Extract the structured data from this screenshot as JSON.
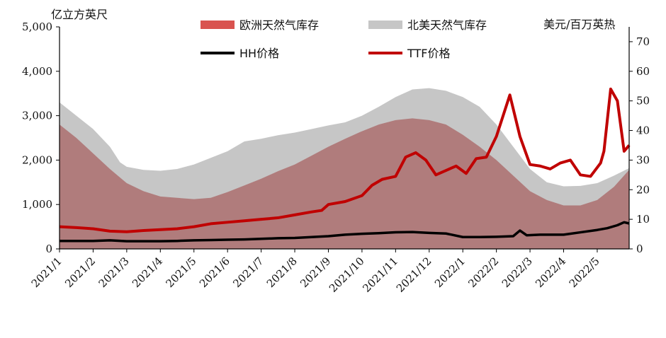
{
  "chart_data": {
    "type": "area",
    "left_axis_unit": "亿立方英尺",
    "right_axis_unit": "美元/百万英热",
    "x_labels": [
      "2021/1",
      "2021/2",
      "2021/3",
      "2021/4",
      "2021/5",
      "2021/6",
      "2021/7",
      "2021/8",
      "2021/9",
      "2021/10",
      "2021/11",
      "2021/12",
      "2022/1",
      "2022/2",
      "2022/3",
      "2022/4",
      "2022/5"
    ],
    "x_range": [
      0,
      16.95
    ],
    "y_left_range": [
      0,
      5000
    ],
    "y_left_ticks": [
      "0",
      "1,000",
      "2,000",
      "3,000",
      "4,000",
      "5,000"
    ],
    "y_right_range": [
      0,
      75
    ],
    "y_right_ticks": [
      "0",
      "10",
      "20",
      "30",
      "40",
      "50",
      "60",
      "70"
    ],
    "legend_position": "top",
    "series": [
      {
        "name": "北美天然气库存",
        "kind": "area",
        "axis": "left",
        "color": "#c6c6c6",
        "points": [
          [
            0,
            3300
          ],
          [
            0.5,
            3000
          ],
          [
            1,
            2700
          ],
          [
            1.5,
            2300
          ],
          [
            1.8,
            1950
          ],
          [
            2,
            1850
          ],
          [
            2.5,
            1780
          ],
          [
            3,
            1760
          ],
          [
            3.5,
            1800
          ],
          [
            4,
            1900
          ],
          [
            4.5,
            2050
          ],
          [
            5,
            2200
          ],
          [
            5.5,
            2420
          ],
          [
            6,
            2480
          ],
          [
            6.5,
            2560
          ],
          [
            7,
            2620
          ],
          [
            7.5,
            2700
          ],
          [
            8,
            2780
          ],
          [
            8.5,
            2850
          ],
          [
            9,
            3000
          ],
          [
            9.5,
            3200
          ],
          [
            10,
            3420
          ],
          [
            10.5,
            3590
          ],
          [
            11,
            3620
          ],
          [
            11.5,
            3560
          ],
          [
            12,
            3420
          ],
          [
            12.5,
            3200
          ],
          [
            13,
            2800
          ],
          [
            13.5,
            2300
          ],
          [
            14,
            1800
          ],
          [
            14.5,
            1500
          ],
          [
            15,
            1410
          ],
          [
            15.5,
            1420
          ],
          [
            16,
            1480
          ],
          [
            16.5,
            1650
          ],
          [
            16.95,
            1820
          ]
        ]
      },
      {
        "name": "欧洲天然气库存",
        "kind": "area",
        "axis": "left",
        "color": "#b07c7c",
        "points": [
          [
            0,
            2800
          ],
          [
            0.5,
            2500
          ],
          [
            1,
            2150
          ],
          [
            1.5,
            1800
          ],
          [
            2,
            1480
          ],
          [
            2.5,
            1300
          ],
          [
            3,
            1180
          ],
          [
            3.5,
            1150
          ],
          [
            4,
            1120
          ],
          [
            4.5,
            1150
          ],
          [
            5,
            1280
          ],
          [
            5.5,
            1430
          ],
          [
            6,
            1580
          ],
          [
            6.5,
            1750
          ],
          [
            7,
            1900
          ],
          [
            7.5,
            2100
          ],
          [
            8,
            2300
          ],
          [
            8.5,
            2480
          ],
          [
            9,
            2650
          ],
          [
            9.5,
            2800
          ],
          [
            10,
            2900
          ],
          [
            10.5,
            2940
          ],
          [
            11,
            2900
          ],
          [
            11.5,
            2800
          ],
          [
            12,
            2570
          ],
          [
            12.5,
            2300
          ],
          [
            13,
            2000
          ],
          [
            13.5,
            1650
          ],
          [
            14,
            1300
          ],
          [
            14.5,
            1100
          ],
          [
            15,
            980
          ],
          [
            15.5,
            980
          ],
          [
            16,
            1100
          ],
          [
            16.5,
            1400
          ],
          [
            16.95,
            1780
          ]
        ]
      },
      {
        "name": "HH价格",
        "kind": "line",
        "axis": "right",
        "color": "#000000",
        "points": [
          [
            0,
            2.7
          ],
          [
            1,
            2.7
          ],
          [
            1.5,
            2.9
          ],
          [
            2,
            2.6
          ],
          [
            2.5,
            2.6
          ],
          [
            3,
            2.6
          ],
          [
            3.5,
            2.7
          ],
          [
            4,
            2.9
          ],
          [
            4.5,
            3.0
          ],
          [
            5,
            3.1
          ],
          [
            5.5,
            3.2
          ],
          [
            6,
            3.4
          ],
          [
            6.5,
            3.6
          ],
          [
            7,
            3.7
          ],
          [
            7.5,
            4.0
          ],
          [
            8,
            4.3
          ],
          [
            8.5,
            4.8
          ],
          [
            9,
            5.1
          ],
          [
            9.5,
            5.3
          ],
          [
            10,
            5.6
          ],
          [
            10.5,
            5.7
          ],
          [
            11,
            5.4
          ],
          [
            11.5,
            5.2
          ],
          [
            12,
            4.0
          ],
          [
            12.5,
            4.0
          ],
          [
            13,
            4.1
          ],
          [
            13.5,
            4.3
          ],
          [
            13.7,
            6.2
          ],
          [
            13.9,
            4.6
          ],
          [
            14.3,
            4.8
          ],
          [
            15,
            4.8
          ],
          [
            15.5,
            5.6
          ],
          [
            16,
            6.4
          ],
          [
            16.3,
            7.0
          ],
          [
            16.6,
            8.0
          ],
          [
            16.8,
            9.0
          ],
          [
            16.95,
            8.6
          ]
        ]
      },
      {
        "name": "TTF价格",
        "kind": "line",
        "axis": "right",
        "color": "#c00000",
        "points": [
          [
            0,
            7.5
          ],
          [
            0.5,
            7.2
          ],
          [
            1,
            6.8
          ],
          [
            1.5,
            6.0
          ],
          [
            2,
            5.8
          ],
          [
            2.5,
            6.2
          ],
          [
            3,
            6.5
          ],
          [
            3.5,
            6.8
          ],
          [
            4,
            7.5
          ],
          [
            4.5,
            8.5
          ],
          [
            5,
            9.0
          ],
          [
            5.5,
            9.5
          ],
          [
            6,
            10.0
          ],
          [
            6.5,
            10.5
          ],
          [
            7,
            11.5
          ],
          [
            7.5,
            12.5
          ],
          [
            7.8,
            13.0
          ],
          [
            8,
            15.0
          ],
          [
            8.5,
            16.0
          ],
          [
            9,
            18.0
          ],
          [
            9.3,
            21.5
          ],
          [
            9.6,
            23.5
          ],
          [
            10,
            24.5
          ],
          [
            10.3,
            31.0
          ],
          [
            10.6,
            32.5
          ],
          [
            10.9,
            30.0
          ],
          [
            11.2,
            25.0
          ],
          [
            11.5,
            26.5
          ],
          [
            11.8,
            28.0
          ],
          [
            12.1,
            25.5
          ],
          [
            12.4,
            30.5
          ],
          [
            12.7,
            31.0
          ],
          [
            13.0,
            38.0
          ],
          [
            13.4,
            52.0
          ],
          [
            13.7,
            38.0
          ],
          [
            14.0,
            28.5
          ],
          [
            14.3,
            28.0
          ],
          [
            14.6,
            27.0
          ],
          [
            14.9,
            29.0
          ],
          [
            15.2,
            30.0
          ],
          [
            15.5,
            25.0
          ],
          [
            15.8,
            24.5
          ],
          [
            16.1,
            29.0
          ],
          [
            16.2,
            33.0
          ],
          [
            16.4,
            54.0
          ],
          [
            16.6,
            50.0
          ],
          [
            16.8,
            33.0
          ],
          [
            16.95,
            35.0
          ]
        ]
      }
    ]
  }
}
